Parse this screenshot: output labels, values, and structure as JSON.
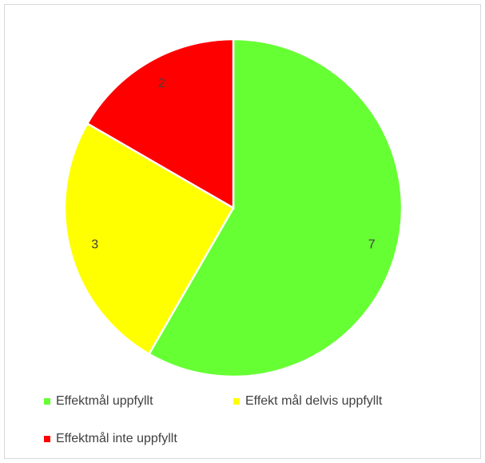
{
  "chart_data": {
    "type": "pie",
    "categories": [
      "Effektmål uppfyllt",
      "Effekt mål delvis uppfyllt",
      "Effektmål inte uppfyllt"
    ],
    "values": [
      7,
      3,
      2
    ],
    "colors": [
      "#66ff33",
      "#ffff00",
      "#ff0000"
    ],
    "legend": "bottom"
  }
}
